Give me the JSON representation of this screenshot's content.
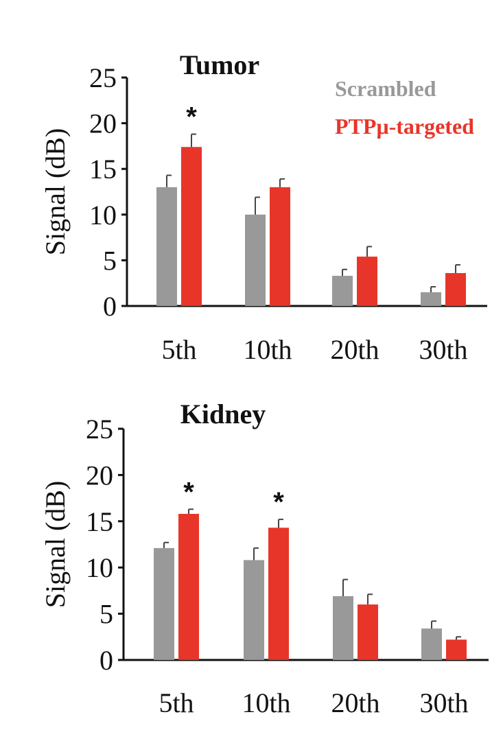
{
  "chart_data": [
    {
      "type": "bar",
      "title": "Tumor",
      "xlabel": "",
      "ylabel": "Signal (dB)",
      "ylim": [
        0,
        25
      ],
      "yticks": [
        0,
        5,
        10,
        15,
        20,
        25
      ],
      "categories": [
        "5th",
        "10th",
        "20th",
        "30th"
      ],
      "series": [
        {
          "name": "Scrambled",
          "color": "#999999",
          "values": [
            13.0,
            10.0,
            3.3,
            1.5
          ],
          "errors": [
            1.3,
            1.9,
            0.7,
            0.6
          ]
        },
        {
          "name": "PTPμ-targeted",
          "color": "#e8352a",
          "values": [
            17.4,
            13.0,
            5.4,
            3.6
          ],
          "errors": [
            1.4,
            0.9,
            1.1,
            0.9
          ]
        }
      ],
      "significance": [
        true,
        false,
        false,
        false
      ],
      "significance_marker": "*",
      "legend": {
        "placement": "top-right",
        "entries": [
          "Scrambled",
          "PTPμ-targeted"
        ]
      }
    },
    {
      "type": "bar",
      "title": "Kidney",
      "xlabel": "",
      "ylabel": "Signal (dB)",
      "ylim": [
        0,
        25
      ],
      "yticks": [
        0,
        5,
        10,
        15,
        20,
        25
      ],
      "categories": [
        "5th",
        "10th",
        "20th",
        "30th"
      ],
      "series": [
        {
          "name": "Scrambled",
          "color": "#999999",
          "values": [
            12.1,
            10.8,
            6.9,
            3.4
          ],
          "errors": [
            0.6,
            1.3,
            1.8,
            0.8
          ]
        },
        {
          "name": "PTPμ-targeted",
          "color": "#e8352a",
          "values": [
            15.8,
            14.3,
            6.0,
            2.2
          ],
          "errors": [
            0.5,
            0.9,
            1.1,
            0.3
          ]
        }
      ],
      "significance": [
        true,
        true,
        false,
        false
      ],
      "significance_marker": "*"
    }
  ]
}
